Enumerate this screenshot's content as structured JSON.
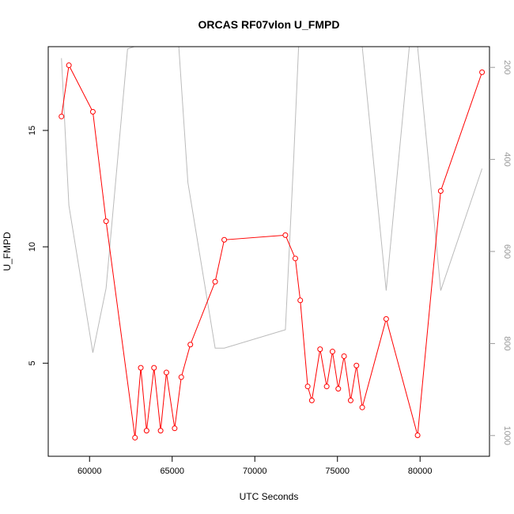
{
  "chart_data": {
    "type": "line",
    "title": "ORCAS RF07vlon U_FMPD",
    "xlabel": "UTC Seconds",
    "ylabel": "U_FMPD",
    "xlim": [
      57500,
      84200
    ],
    "ylim": [
      1.0,
      18.6
    ],
    "x_ticks": [
      60000,
      65000,
      70000,
      75000,
      80000
    ],
    "y_ticks": [
      5,
      10,
      15
    ],
    "y2lim": [
      1045,
      155
    ],
    "y2_reversed": true,
    "y2_ticks": [
      200,
      400,
      600,
      800,
      1000
    ],
    "grid": false,
    "series": [
      {
        "color": "#ff0000",
        "style": "line+open-circle",
        "axis": "left",
        "x": [
          58300,
          58750,
          60200,
          61000,
          62750,
          63100,
          63450,
          63900,
          64300,
          64650,
          65150,
          65550,
          66100,
          67600,
          68150,
          71850,
          72450,
          72750,
          73200,
          73450,
          73950,
          74350,
          74700,
          75050,
          75400,
          75800,
          76150,
          76500,
          77950,
          79850,
          81250,
          83750
        ],
        "y": [
          15.6,
          17.8,
          15.8,
          11.1,
          1.8,
          4.8,
          2.1,
          4.8,
          2.1,
          4.6,
          2.2,
          4.4,
          5.8,
          8.5,
          10.3,
          10.5,
          9.5,
          7.7,
          4.0,
          3.4,
          5.6,
          4.0,
          5.5,
          3.9,
          5.3,
          3.4,
          4.9,
          3.1,
          6.9,
          1.9,
          12.4,
          17.5
        ]
      },
      {
        "color": "#bbbbbb",
        "style": "line",
        "axis": "right",
        "x": [
          58300,
          58750,
          60200,
          61000,
          62300,
          62700,
          65400,
          65950,
          67600,
          68150,
          71850,
          72350,
          72650,
          76500,
          77950,
          79350,
          79850,
          81250,
          83750
        ],
        "y": [
          180,
          500,
          820,
          680,
          160,
          155,
          155,
          450,
          810,
          810,
          770,
          400,
          155,
          155,
          685,
          155,
          155,
          685,
          420
        ]
      }
    ]
  }
}
